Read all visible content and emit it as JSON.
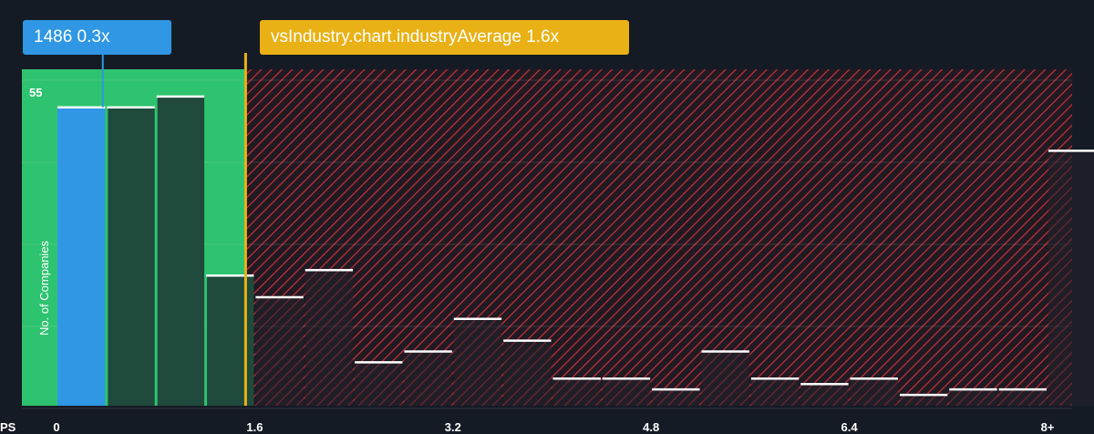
{
  "callouts": {
    "company": "1486 0.3x",
    "industry": "vsIndustry.chart.industryAverage 1.6x"
  },
  "axis": {
    "x_prefix": "PS",
    "ylabel": "No. of Companies",
    "y_tick": "55"
  },
  "colors": {
    "background": "#151b24",
    "company_bar": "#2f97e3",
    "undervalued_zone": "#2ec36e",
    "undervalued_bar": "#1f4a3c",
    "overvalued_hatch": "#c8313c",
    "industry_line": "#e9b115",
    "bar_cap": "#ffffff"
  },
  "chart_data": {
    "type": "bar",
    "title": "",
    "xlabel": "PS",
    "ylabel": "No. of Companies",
    "xlim": [
      0,
      8.2
    ],
    "ylim": [
      0,
      60
    ],
    "x_ticks": [
      "0",
      "1.6",
      "3.2",
      "4.8",
      "6.4",
      "8+"
    ],
    "y_ticks": [
      55
    ],
    "company_value": 0.3,
    "industry_average": 1.6,
    "bin_width": 0.4,
    "bins": [
      {
        "x0": 0.0,
        "value": 55,
        "group": "company"
      },
      {
        "x0": 0.4,
        "value": 55,
        "group": "below"
      },
      {
        "x0": 0.8,
        "value": 57,
        "group": "below"
      },
      {
        "x0": 1.2,
        "value": 24,
        "group": "below"
      },
      {
        "x0": 1.6,
        "value": 20,
        "group": "above"
      },
      {
        "x0": 2.0,
        "value": 25,
        "group": "above"
      },
      {
        "x0": 2.4,
        "value": 8,
        "group": "above"
      },
      {
        "x0": 2.8,
        "value": 10,
        "group": "above"
      },
      {
        "x0": 3.2,
        "value": 16,
        "group": "above"
      },
      {
        "x0": 3.6,
        "value": 12,
        "group": "above"
      },
      {
        "x0": 4.0,
        "value": 5,
        "group": "above"
      },
      {
        "x0": 4.4,
        "value": 5,
        "group": "above"
      },
      {
        "x0": 4.8,
        "value": 3,
        "group": "above"
      },
      {
        "x0": 5.2,
        "value": 10,
        "group": "above"
      },
      {
        "x0": 5.6,
        "value": 5,
        "group": "above"
      },
      {
        "x0": 6.0,
        "value": 4,
        "group": "above"
      },
      {
        "x0": 6.4,
        "value": 5,
        "group": "above"
      },
      {
        "x0": 6.8,
        "value": 2,
        "group": "above"
      },
      {
        "x0": 7.2,
        "value": 3,
        "group": "above"
      },
      {
        "x0": 7.6,
        "value": 3,
        "group": "above"
      },
      {
        "x0": 8.0,
        "value": 47,
        "group": "above"
      }
    ],
    "grid": true,
    "legend": "none"
  }
}
